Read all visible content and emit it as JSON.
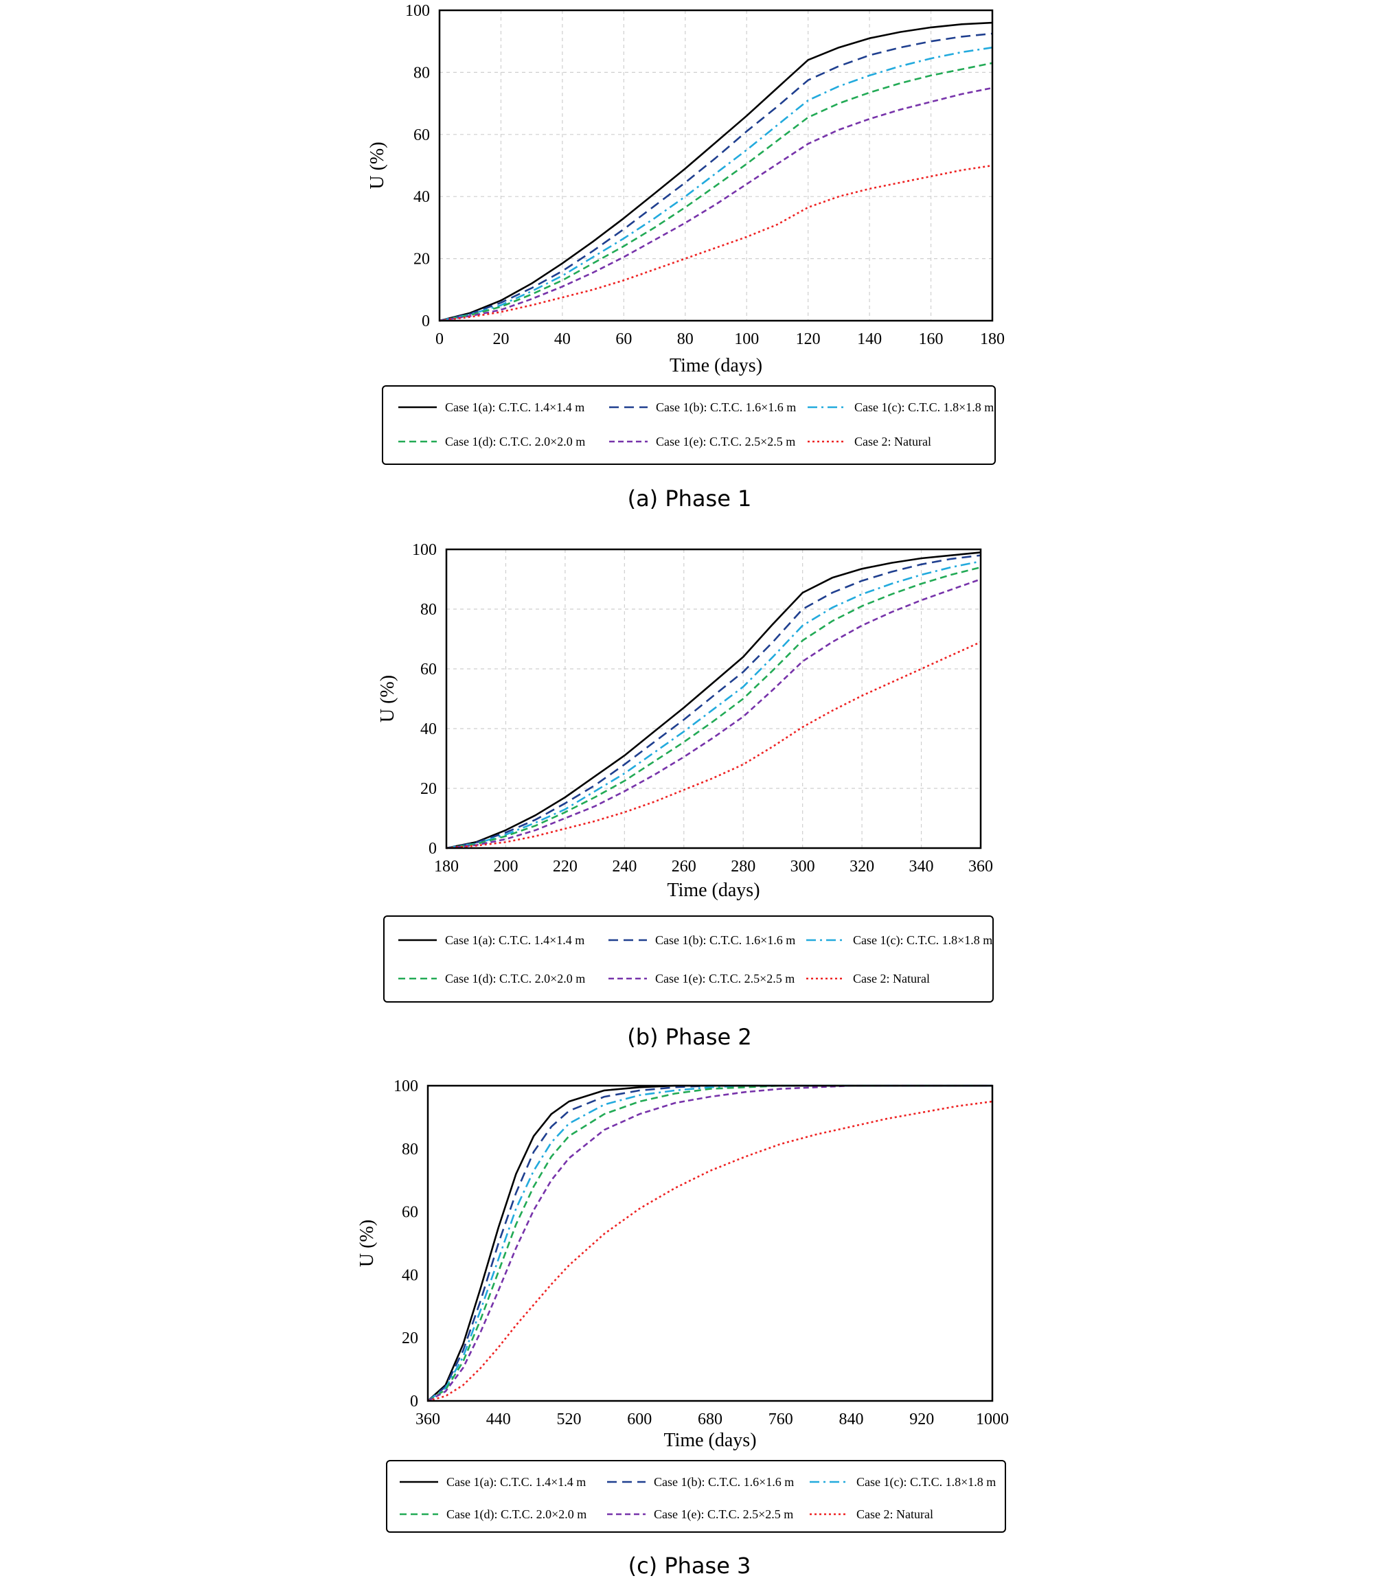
{
  "legend_entries": [
    "Case 1(a): C.T.C. 1.4×1.4 m",
    "Case 1(b): C.T.C. 1.6×1.6 m",
    "Case 1(c): C.T.C. 1.8×1.8 m",
    "Case 1(d): C.T.C. 2.0×2.0 m",
    "Case 1(e): C.T.C. 2.5×2.5 m",
    "Case 2: Natural"
  ],
  "series_styles": [
    {
      "color": "#000000",
      "dash": ""
    },
    {
      "color": "#1f3f8f",
      "dash": "14 8"
    },
    {
      "color": "#22aadd",
      "dash": "14 6 3 6"
    },
    {
      "color": "#22aa55",
      "dash": "10 6"
    },
    {
      "color": "#7733aa",
      "dash": "8 5"
    },
    {
      "color": "#ee2222",
      "dash": "3 4"
    }
  ],
  "chart_data": [
    {
      "type": "line",
      "caption": "(a) Phase 1",
      "xlabel": "Time (days)",
      "ylabel": "U (%)",
      "xlim": [
        0,
        180
      ],
      "ylim": [
        0,
        100
      ],
      "xticks": [
        0,
        20,
        40,
        60,
        80,
        100,
        120,
        140,
        160,
        180
      ],
      "yticks": [
        0,
        20,
        40,
        60,
        80,
        100
      ],
      "grid": true,
      "legend_position": "below",
      "x": [
        0,
        10,
        20,
        30,
        40,
        50,
        60,
        70,
        80,
        90,
        100,
        110,
        120,
        130,
        140,
        150,
        160,
        170,
        180
      ],
      "series": [
        {
          "name": "Case 1(a): C.T.C. 1.4×1.4 m",
          "values": [
            0,
            2.5,
            6.5,
            12,
            18.5,
            25.5,
            33,
            41,
            49,
            57.5,
            66,
            75,
            84,
            88,
            91,
            93,
            94.5,
            95.5,
            96
          ]
        },
        {
          "name": "Case 1(b): C.T.C. 1.6×1.6 m",
          "values": [
            0,
            2.2,
            5.8,
            10.5,
            16,
            22.5,
            29.5,
            37,
            44.5,
            52.5,
            61,
            69,
            77.5,
            82,
            85.5,
            88,
            90,
            91.5,
            92.5
          ]
        },
        {
          "name": "Case 1(c): C.T.C. 1.8×1.8 m",
          "values": [
            0,
            2,
            5,
            9.5,
            14.5,
            20.5,
            26.5,
            33,
            40,
            47.5,
            55,
            63,
            71,
            75.5,
            79,
            82,
            84.5,
            86.5,
            88
          ]
        },
        {
          "name": "Case 1(d): C.T.C. 2.0×2.0 m",
          "values": [
            0,
            1.8,
            4.5,
            8.5,
            13,
            18.5,
            24,
            30,
            36.5,
            43.5,
            50.5,
            58,
            65.5,
            70,
            73.5,
            76.5,
            79,
            81,
            83
          ]
        },
        {
          "name": "Case 1(e): C.T.C. 2.5×2.5 m",
          "values": [
            0,
            1.5,
            3.5,
            7,
            11,
            15.5,
            20.5,
            26,
            31.5,
            37.5,
            44,
            50.5,
            57,
            61.5,
            65,
            68,
            70.5,
            73,
            75
          ]
        },
        {
          "name": "Case 2: Natural",
          "values": [
            0,
            1.2,
            2.8,
            5,
            7.5,
            10,
            13,
            16.5,
            20,
            23.5,
            27,
            31,
            36.5,
            40,
            42.5,
            44.5,
            46.5,
            48.5,
            50
          ]
        }
      ]
    },
    {
      "type": "line",
      "caption": "(b) Phase 2",
      "xlabel": "Time (days)",
      "ylabel": "U (%)",
      "xlim": [
        180,
        360
      ],
      "ylim": [
        0,
        100
      ],
      "xticks": [
        180,
        200,
        220,
        240,
        260,
        280,
        300,
        320,
        340,
        360
      ],
      "yticks": [
        0,
        20,
        40,
        60,
        80,
        100
      ],
      "grid": true,
      "legend_position": "below",
      "x": [
        180,
        190,
        200,
        210,
        220,
        230,
        240,
        250,
        260,
        270,
        280,
        290,
        300,
        310,
        320,
        330,
        340,
        350,
        360
      ],
      "series": [
        {
          "name": "Case 1(a): C.T.C. 1.4×1.4 m",
          "values": [
            0,
            2,
            6,
            11,
            17,
            24,
            31,
            39,
            47,
            55.5,
            64,
            75,
            85.5,
            90.5,
            93.5,
            95.5,
            97,
            98,
            99
          ]
        },
        {
          "name": "Case 1(b): C.T.C. 1.6×1.6 m",
          "values": [
            0,
            1.8,
            5.2,
            9.5,
            15,
            21,
            28,
            35.5,
            43,
            51,
            59,
            69,
            80,
            85.5,
            89.5,
            92.5,
            95,
            96.8,
            98
          ]
        },
        {
          "name": "Case 1(c): C.T.C. 1.8×1.8 m",
          "values": [
            0,
            1.5,
            4.5,
            8.5,
            13,
            19,
            25,
            32,
            39,
            46.5,
            54,
            64,
            74.5,
            80.5,
            85,
            88.5,
            91.5,
            94,
            96
          ]
        },
        {
          "name": "Case 1(d): C.T.C. 2.0×2.0 m",
          "values": [
            0,
            1.3,
            4,
            7.5,
            12,
            17,
            22.5,
            29,
            35.5,
            42.5,
            50,
            59.5,
            69.5,
            76,
            81,
            85,
            88.5,
            91.5,
            94
          ]
        },
        {
          "name": "Case 1(e): C.T.C. 2.5×2.5 m",
          "values": [
            0,
            1,
            3,
            6,
            10,
            14,
            19,
            24.5,
            30.5,
            37,
            44,
            53,
            62.5,
            69,
            74.5,
            79,
            83,
            86.5,
            90
          ]
        },
        {
          "name": "Case 2: Natural",
          "values": [
            0,
            0.8,
            2,
            4,
            6.5,
            9,
            12,
            15.5,
            19.5,
            23.5,
            28,
            34,
            40.5,
            46,
            51,
            55.5,
            60,
            64.5,
            69
          ]
        }
      ]
    },
    {
      "type": "line",
      "caption": "(c) Phase 3",
      "xlabel": "Time (days)",
      "ylabel": "U (%)",
      "xlim": [
        360,
        1000
      ],
      "ylim": [
        0,
        100
      ],
      "xticks": [
        360,
        440,
        520,
        600,
        680,
        760,
        840,
        920,
        1000
      ],
      "yticks": [
        0,
        20,
        40,
        60,
        80,
        100
      ],
      "grid": false,
      "legend_position": "below",
      "x": [
        360,
        380,
        400,
        420,
        440,
        460,
        480,
        500,
        520,
        560,
        600,
        640,
        680,
        720,
        760,
        800,
        840,
        880,
        920,
        960,
        1000
      ],
      "series": [
        {
          "name": "Case 1(a): C.T.C. 1.4×1.4 m",
          "values": [
            0,
            5,
            18,
            36,
            55,
            72,
            84,
            91,
            95,
            98.5,
            99.5,
            100,
            100,
            100,
            100,
            100,
            100,
            100,
            100,
            100,
            100
          ]
        },
        {
          "name": "Case 1(b): C.T.C. 1.6×1.6 m",
          "values": [
            0,
            4.5,
            16,
            32,
            50,
            66,
            79,
            87,
            92,
            96.5,
            98.5,
            99.5,
            100,
            100,
            100,
            100,
            100,
            100,
            100,
            100,
            100
          ]
        },
        {
          "name": "Case 1(c): C.T.C. 1.8×1.8 m",
          "values": [
            0,
            4,
            14,
            29,
            45,
            61,
            73,
            82,
            88,
            94,
            97,
            98.5,
            99.5,
            100,
            100,
            100,
            100,
            100,
            100,
            100,
            100
          ]
        },
        {
          "name": "Case 1(d): C.T.C. 2.0×2.0 m",
          "values": [
            0,
            3.5,
            12.5,
            26,
            41,
            56,
            68,
            77.5,
            84,
            91,
            95,
            97.5,
            99,
            99.5,
            100,
            100,
            100,
            100,
            100,
            100,
            100
          ]
        },
        {
          "name": "Case 1(e): C.T.C. 2.5×2.5 m",
          "values": [
            0,
            3,
            10.5,
            22,
            35,
            48.5,
            60.5,
            70,
            77,
            86,
            91,
            94.5,
            96.5,
            98,
            99,
            99.5,
            100,
            100,
            100,
            100,
            100
          ]
        },
        {
          "name": "Case 2: Natural",
          "values": [
            0,
            1.5,
            5,
            10.5,
            17,
            24,
            30.5,
            37,
            43,
            53,
            61,
            67.5,
            73,
            77.5,
            81.5,
            84.5,
            87,
            89.5,
            91.5,
            93.5,
            95
          ]
        }
      ]
    }
  ]
}
